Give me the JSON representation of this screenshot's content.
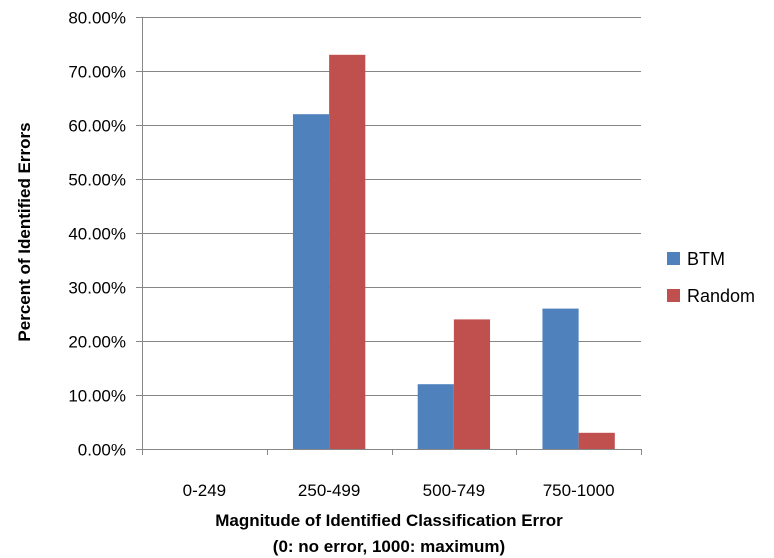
{
  "chart_data": {
    "type": "bar",
    "categories": [
      "0-249",
      "250-499",
      "500-749",
      "750-1000"
    ],
    "series": [
      {
        "name": "BTM",
        "values": [
          0,
          62,
          12,
          26
        ],
        "color": "#4f81bd"
      },
      {
        "name": "Random",
        "values": [
          0,
          73,
          24,
          3
        ],
        "color": "#c0504d"
      }
    ],
    "y_tick_labels": [
      "0.00%",
      "10.00%",
      "20.00%",
      "30.00%",
      "40.00%",
      "50.00%",
      "60.00%",
      "70.00%",
      "80.00%"
    ],
    "ylim": [
      0,
      80
    ],
    "grid": true,
    "legend_position": "right",
    "xlabel_line1": "Magnitude of Identified Classification Error",
    "xlabel_line2": "(0: no error, 1000: maximum)",
    "ylabel": "Percent of Identified Errors",
    "colors": {
      "gridline": "#868686",
      "axis": "#868686"
    }
  }
}
